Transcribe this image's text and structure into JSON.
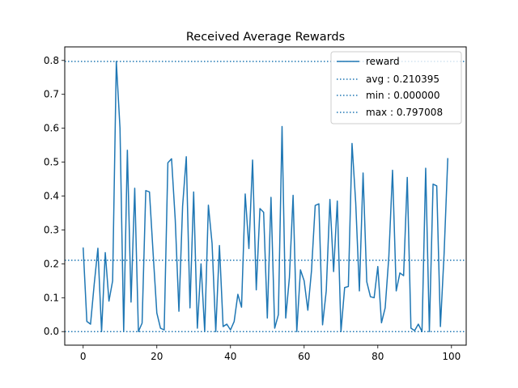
{
  "chart_data": {
    "type": "line",
    "title": "Received Average Rewards",
    "xlabel": "",
    "ylabel": "",
    "xlim": [
      -5,
      104
    ],
    "ylim": [
      -0.04,
      0.84
    ],
    "xticks": [
      0,
      20,
      40,
      60,
      80,
      100
    ],
    "yticks": [
      0.0,
      0.1,
      0.2,
      0.3,
      0.4,
      0.5,
      0.6,
      0.7,
      0.8
    ],
    "ytick_labels": [
      "0.0",
      "0.1",
      "0.2",
      "0.3",
      "0.4",
      "0.5",
      "0.6",
      "0.7",
      "0.8"
    ],
    "grid": false,
    "legend_position": "top-right",
    "color": "#1f77b4",
    "series": [
      {
        "name": "reward",
        "x": [
          0,
          1,
          2,
          3,
          4,
          5,
          6,
          7,
          8,
          9,
          10,
          11,
          12,
          13,
          14,
          15,
          16,
          17,
          18,
          19,
          20,
          21,
          22,
          23,
          24,
          25,
          26,
          27,
          28,
          29,
          30,
          31,
          32,
          33,
          34,
          35,
          36,
          37,
          38,
          39,
          40,
          41,
          42,
          43,
          44,
          45,
          46,
          47,
          48,
          49,
          50,
          51,
          52,
          53,
          54,
          55,
          56,
          57,
          58,
          59,
          60,
          61,
          62,
          63,
          64,
          65,
          66,
          67,
          68,
          69,
          70,
          71,
          72,
          73,
          74,
          75,
          76,
          77,
          78,
          79,
          80,
          81,
          82,
          83,
          84,
          85,
          86,
          87,
          88,
          89,
          90,
          91,
          92,
          93,
          94,
          95,
          96,
          97,
          98,
          99
        ],
        "values": [
          0.248,
          0.03,
          0.022,
          0.14,
          0.246,
          0.0,
          0.233,
          0.09,
          0.15,
          0.797,
          0.6,
          0.0,
          0.535,
          0.087,
          0.423,
          0.0,
          0.025,
          0.416,
          0.412,
          0.23,
          0.055,
          0.01,
          0.005,
          0.498,
          0.51,
          0.33,
          0.06,
          0.37,
          0.516,
          0.07,
          0.412,
          0.01,
          0.2,
          0.0,
          0.373,
          0.26,
          0.0,
          0.254,
          0.015,
          0.022,
          0.005,
          0.03,
          0.11,
          0.072,
          0.406,
          0.245,
          0.506,
          0.123,
          0.363,
          0.352,
          0.04,
          0.396,
          0.01,
          0.05,
          0.605,
          0.04,
          0.16,
          0.402,
          0.0,
          0.182,
          0.15,
          0.063,
          0.18,
          0.372,
          0.377,
          0.02,
          0.12,
          0.39,
          0.177,
          0.385,
          0.0,
          0.13,
          0.133,
          0.555,
          0.38,
          0.12,
          0.468,
          0.147,
          0.103,
          0.1,
          0.192,
          0.026,
          0.07,
          0.222,
          0.476,
          0.12,
          0.173,
          0.165,
          0.455,
          0.01,
          0.003,
          0.022,
          0.0,
          0.482,
          0.0,
          0.435,
          0.43,
          0.015,
          0.23,
          0.512
        ]
      }
    ],
    "reference_lines": [
      {
        "label": "avg : 0.210395",
        "value": 0.210395
      },
      {
        "label": "min : 0.000000",
        "value": 0.0
      },
      {
        "label": "max : 0.797008",
        "value": 0.797008
      }
    ]
  }
}
